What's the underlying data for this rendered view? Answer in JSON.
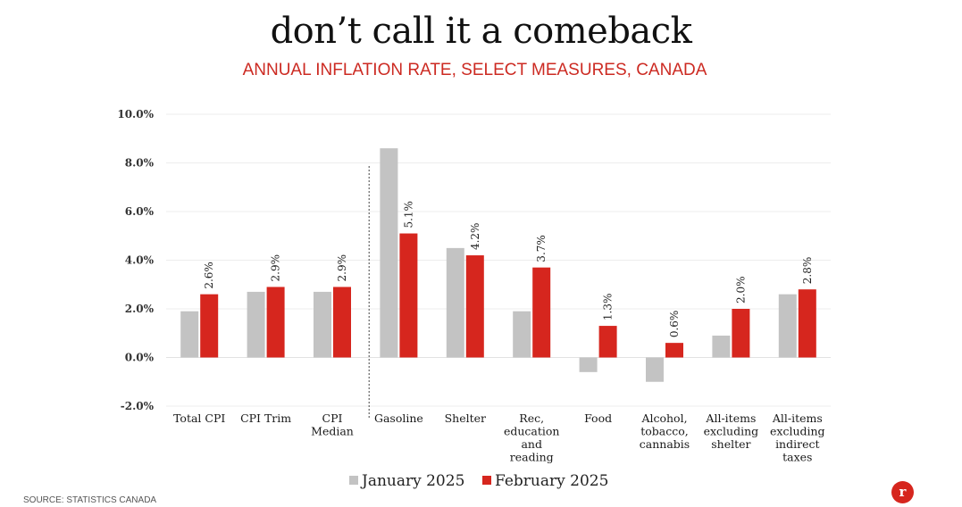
{
  "title": "don’t call it a comeback",
  "subtitle": "ANNUAL INFLATION RATE, SELECT MEASURES, CANADA",
  "source": "SOURCE: STATISTICS CANADA",
  "logo_text": "r",
  "colors": {
    "january": "#c3c3c3",
    "february": "#d6261e",
    "subtitle": "#cc2a22"
  },
  "chart_data": {
    "type": "bar",
    "categories": [
      [
        "Total CPI"
      ],
      [
        "CPI Trim"
      ],
      [
        "CPI",
        "Median"
      ],
      [
        "Gasoline"
      ],
      [
        "Shelter"
      ],
      [
        "Rec,",
        "education",
        "and",
        "reading"
      ],
      [
        "Food"
      ],
      [
        "Alcohol,",
        "tobacco,",
        "cannabis"
      ],
      [
        "All-items",
        "excluding",
        "shelter"
      ],
      [
        "All-items",
        "excluding",
        "indirect",
        "taxes"
      ]
    ],
    "series": [
      {
        "name": "January 2025",
        "values": [
          1.9,
          2.7,
          2.7,
          8.6,
          4.5,
          1.9,
          -0.6,
          -1.0,
          0.9,
          2.6
        ]
      },
      {
        "name": "February 2025",
        "values": [
          2.6,
          2.9,
          2.9,
          5.1,
          4.2,
          3.7,
          1.3,
          0.6,
          2.0,
          2.8
        ],
        "labels": [
          "2.6%",
          "2.9%",
          "2.9%",
          "5.1%",
          "4.2%",
          "3.7%",
          "1.3%",
          "0.6%",
          "2.0%",
          "2.8%"
        ]
      }
    ],
    "ylim": [
      -2.0,
      10.0
    ],
    "yticks": [
      "-2.0%",
      "0.0%",
      "2.0%",
      "4.0%",
      "6.0%",
      "8.0%",
      "10.0%"
    ],
    "ytick_values": [
      -2,
      0,
      2,
      4,
      6,
      8,
      10
    ],
    "grid": true,
    "legend": "bottom-center",
    "divider_after_category": 3
  }
}
